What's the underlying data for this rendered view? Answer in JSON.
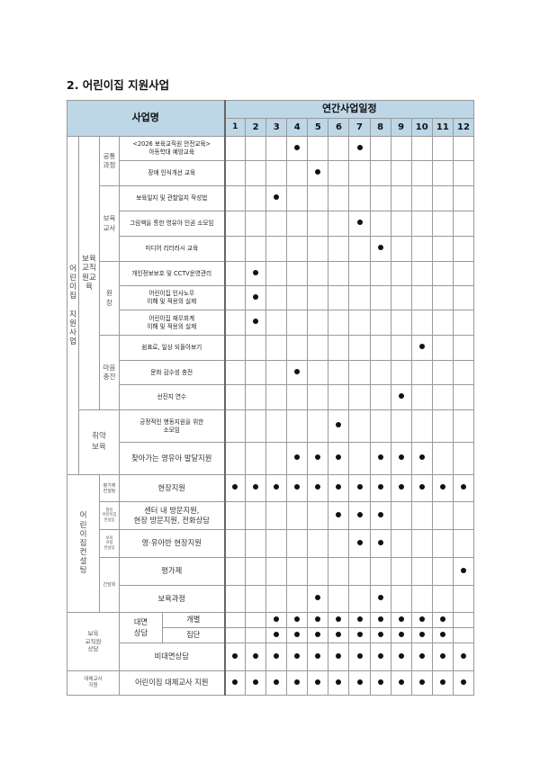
{
  "title": "2. 어린이집 지원사업",
  "header": {
    "name": "사업명",
    "schedule": "연간사업일정",
    "months": [
      "1",
      "2",
      "3",
      "4",
      "5",
      "6",
      "7",
      "8",
      "9",
      "10",
      "11",
      "12"
    ]
  },
  "categories": {
    "main": "어린이집\n\n지원사업",
    "edu": "보육교직원교육",
    "common": "공통\n과정",
    "teacher": "보육\n교사",
    "director": "원\n장",
    "mind": "마음\n충전",
    "vulnerable": "취약\n보육",
    "consult": "어린이집컨설팅",
    "eval_consult": "평가제\n컨설팅",
    "open_consult": "열린\n어린이집\n컨설팅",
    "curri_consult": "보육\n과정\n컨설팅",
    "meeting": "간담회",
    "counsel": "보육\n교직원\n상담",
    "face": "대면\n상담",
    "substitute": "대체교사\n지원"
  },
  "rows": [
    {
      "name": "<2026 보육교직원 안전교육>\n아동학대 예방교육",
      "months": [
        4,
        7
      ]
    },
    {
      "name": "장애 인식개선 교육",
      "months": [
        5
      ]
    },
    {
      "name": "보육일지 및 관찰일지 작성법",
      "months": [
        3
      ]
    },
    {
      "name": "그림책을 통한 영유아 인권 소모임",
      "months": [
        7
      ]
    },
    {
      "name": "미디어 리터러시 교육",
      "months": [
        8
      ]
    },
    {
      "name": "개인정보보호 및 CCTV운영관리",
      "months": [
        2
      ]
    },
    {
      "name": "어린이집 인사노무\n이해 및 적용의 실제",
      "months": [
        2
      ]
    },
    {
      "name": "어린이집 재무회계\n이해 및 적용의 실제",
      "months": [
        2
      ]
    },
    {
      "name": "쉼표로, 일상 되돌아보기",
      "months": [
        10
      ]
    },
    {
      "name": "문화 감수성 충전",
      "months": [
        4
      ]
    },
    {
      "name": "선진지 연수",
      "months": [
        9
      ]
    },
    {
      "name": "긍정적인 행동지원을 위한\n소모임",
      "months": [
        6
      ]
    },
    {
      "name": "찾아가는 영유아 발달지원",
      "months": [
        4,
        5,
        6,
        8,
        9,
        10
      ]
    },
    {
      "name": "현장지원",
      "months": [
        1,
        2,
        3,
        4,
        5,
        6,
        7,
        8,
        9,
        10,
        11,
        12
      ]
    },
    {
      "name": "센터 내 방문지원,\n현장 방문지원, 전화상담",
      "months": [
        6,
        7,
        8
      ]
    },
    {
      "name": "영·유아반 현장지원",
      "months": [
        7,
        8
      ]
    },
    {
      "name": "평가제",
      "months": [
        12
      ]
    },
    {
      "name": "보육과정",
      "months": [
        5,
        8
      ]
    },
    {
      "name": "개별",
      "months": [
        3,
        4,
        5,
        6,
        7,
        8,
        9,
        10,
        11
      ]
    },
    {
      "name": "집단",
      "months": [
        3,
        4,
        5,
        6,
        7,
        8,
        9,
        10,
        11
      ]
    },
    {
      "name": "비대면상담",
      "months": [
        1,
        2,
        3,
        4,
        5,
        6,
        7,
        8,
        9,
        10,
        11,
        12
      ]
    },
    {
      "name": "어린이집 대체교사 지원",
      "months": [
        1,
        2,
        3,
        4,
        5,
        6,
        7,
        8,
        9,
        10,
        11,
        12
      ]
    }
  ]
}
